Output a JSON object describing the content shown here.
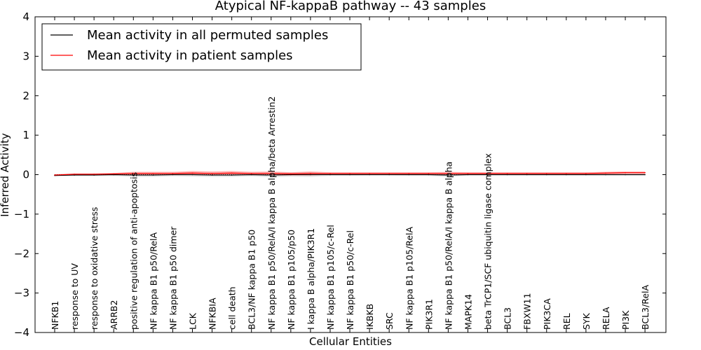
{
  "chart_data": {
    "type": "line",
    "title": "Atypical NF-kappaB pathway -- 43 samples",
    "xlabel": "Cellular Entities",
    "ylabel": "Inferred Activity",
    "ylim": [
      -4,
      4
    ],
    "yticks": [
      -4,
      -3,
      -2,
      -1,
      0,
      1,
      2,
      3,
      4
    ],
    "grid": false,
    "legend_position": "top-left",
    "categories": [
      "NFKB1",
      "response to UV",
      "response to oxidative stress",
      "ARRB2",
      "positive regulation of anti-apoptosis",
      "NF kappa B1 p50/RelA",
      "NF kappa B1 p50 dimer",
      "LCK",
      "NFKBIA",
      "cell death",
      "BCL3/NF kappa B1 p50",
      "NF kappa B1 p50/RelA/I kappa B alpha/beta Arrestin2",
      "NF kappa B1 p105/p50",
      "I kappa B alpha/PIK3R1",
      "NF kappa B1 p105/c-Rel",
      "NF kappa B1 p50/c-Rel",
      "IKBKB",
      "SRC",
      "NF kappa B1 p105/RelA",
      "PIK3R1",
      "NF kappa B1 p50/RelA/I kappa B alpha",
      "MAPK14",
      "beta TrCP1/SCF ubiquitin ligase complex",
      "BCL3",
      "FBXW11",
      "PIK3CA",
      "REL",
      "SYK",
      "RELA",
      "PI3K",
      "BCL3/RelA"
    ],
    "series": [
      {
        "name": "Mean activity in all permuted samples",
        "color": "#000000",
        "band_color": "#b3b3b3",
        "values": [
          -0.02,
          -0.01,
          -0.01,
          0.0,
          -0.01,
          -0.01,
          0.0,
          0.0,
          -0.01,
          -0.01,
          0.0,
          -0.01,
          0.0,
          0.0,
          0.0,
          0.0,
          0.0,
          0.0,
          0.0,
          0.0,
          -0.01,
          0.0,
          0.0,
          0.0,
          0.0,
          0.0,
          0.0,
          0.0,
          0.0,
          0.0,
          0.0
        ],
        "spread": [
          0.02,
          0.02,
          0.02,
          0.03,
          0.05,
          0.05,
          0.04,
          0.05,
          0.05,
          0.05,
          0.04,
          0.06,
          0.05,
          0.06,
          0.03,
          0.03,
          0.02,
          0.02,
          0.03,
          0.03,
          0.05,
          0.02,
          0.02,
          0.02,
          0.02,
          0.02,
          0.02,
          0.02,
          0.02,
          0.02,
          0.02
        ]
      },
      {
        "name": "Mean activity in patient samples",
        "color": "#ff0000",
        "band_color": "#ff0000",
        "values": [
          -0.01,
          0.01,
          0.01,
          0.02,
          0.03,
          0.03,
          0.03,
          0.04,
          0.03,
          0.04,
          0.03,
          0.03,
          0.02,
          0.03,
          0.03,
          0.03,
          0.03,
          0.03,
          0.03,
          0.03,
          0.03,
          0.03,
          0.03,
          0.03,
          0.03,
          0.03,
          0.03,
          0.03,
          0.04,
          0.05,
          0.05
        ],
        "spread": [
          0.02,
          0.02,
          0.02,
          0.02,
          0.04,
          0.04,
          0.04,
          0.05,
          0.05,
          0.05,
          0.04,
          0.05,
          0.04,
          0.05,
          0.03,
          0.03,
          0.03,
          0.03,
          0.03,
          0.03,
          0.04,
          0.03,
          0.03,
          0.03,
          0.03,
          0.03,
          0.03,
          0.03,
          0.03,
          0.03,
          0.03
        ]
      }
    ]
  }
}
